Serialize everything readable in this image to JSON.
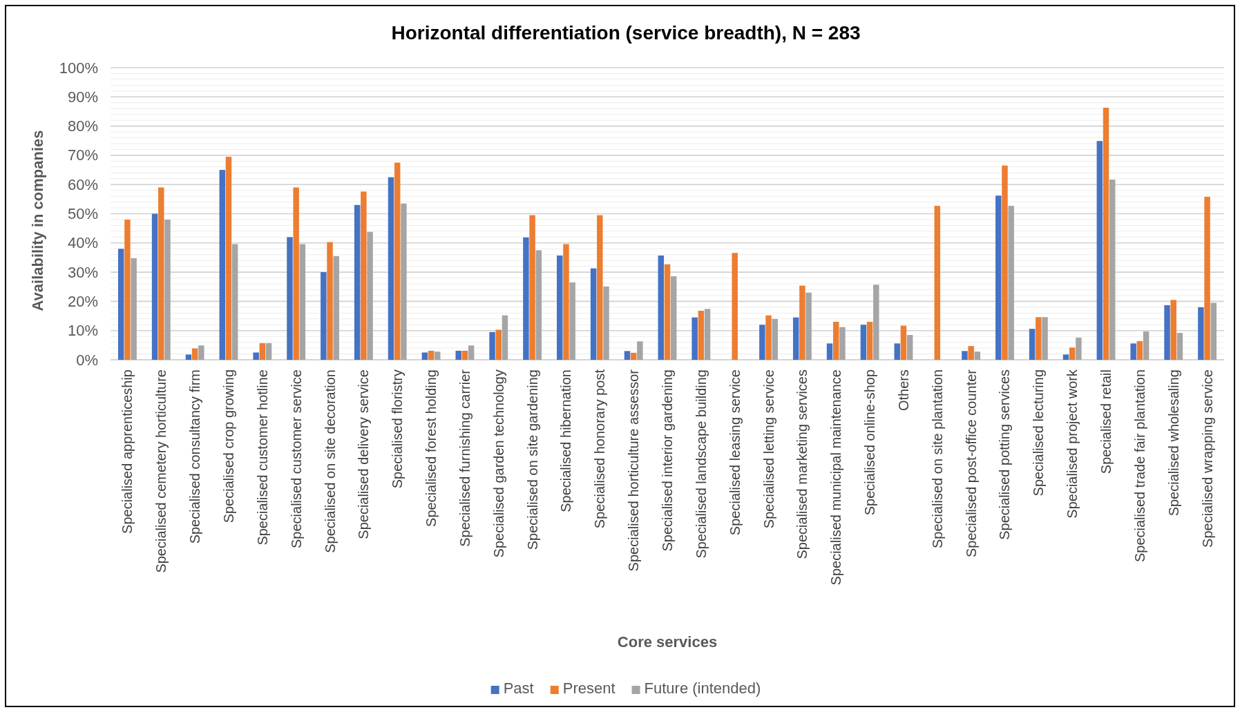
{
  "chart_data": {
    "type": "bar",
    "title": "Horizontal differentiation (service breadth), N = 283",
    "xlabel": "Core services",
    "ylabel": "Availability in companies",
    "categories": [
      "Specialised apprenticeship",
      "Specialised cemetery horticulture",
      "Specialised consultancy firm",
      "Specialised crop growing",
      "Specialised customer hotline",
      "Specialised  customer service",
      "Specialised on site decoration",
      "Specialised delivery service",
      "Specialised floristry",
      "Specialised forest holding",
      "Specialised furnishing carrier",
      "Specialised garden technology",
      "Specialised on site gardening",
      "Specialised hibernation",
      "Specialised honorary post",
      "Specialised horticulture assessor",
      "Specialised interior gardening",
      "Specialised landscape building",
      "Specialised leasing service",
      "Specialised letting service",
      "Specialised marketing services",
      "Specialised municipal maintenance",
      "Specialised online-shop",
      "Others",
      "Specialised on site plantation",
      "Specialised post-office counter",
      "Specialised potting services",
      "Specialised lecturing",
      "Specialised project work",
      "Specialised retail",
      "Specialised trade fair plantation",
      "Specialised wholesaling",
      "Specialised wrapping service"
    ],
    "series": [
      {
        "name": "Past",
        "color": "#4472c4",
        "values": [
          38,
          50,
          1.8,
          65,
          2.5,
          42,
          30,
          53,
          62.5,
          2.5,
          3.1,
          9.5,
          41.9,
          35.7,
          31.3,
          3,
          35.7,
          14.5,
          0,
          12,
          14.5,
          5.6,
          12,
          5.6,
          0,
          3,
          56.2,
          10.6,
          1.8,
          74.9,
          5.6,
          18.7,
          18
        ]
      },
      {
        "name": "Present",
        "color": "#ed7d31",
        "values": [
          48,
          59,
          3.9,
          69.5,
          5.7,
          59,
          40.3,
          57.6,
          67.5,
          3.1,
          3.1,
          10.3,
          49.5,
          39.6,
          49.5,
          2.4,
          32.7,
          16.8,
          36.6,
          15.2,
          25.4,
          13,
          13,
          11.7,
          52.7,
          4.7,
          66.5,
          14.6,
          4.2,
          86.3,
          6.4,
          20.5,
          55.8
        ]
      },
      {
        "name": "Future (intended)",
        "color": "#a5a5a5",
        "values": [
          34.8,
          48,
          4.9,
          39.6,
          5.7,
          39.6,
          35.5,
          43.8,
          53.5,
          2.8,
          4.9,
          15.2,
          37.5,
          26.5,
          25.1,
          6.3,
          28.6,
          17.4,
          0,
          14,
          23,
          11.2,
          25.7,
          8.5,
          0,
          2.8,
          52.7,
          14.6,
          7.6,
          61.7,
          9.7,
          9.2,
          19.5
        ]
      }
    ],
    "ylim": [
      0,
      100
    ],
    "yticks": [
      {
        "value": 0,
        "label": "0%"
      },
      {
        "value": 2,
        "label": null
      },
      {
        "value": 4,
        "label": null
      },
      {
        "value": 6,
        "label": null
      },
      {
        "value": 8,
        "label": null
      },
      {
        "value": 10,
        "label": "10%"
      },
      {
        "value": 12,
        "label": null
      },
      {
        "value": 14,
        "label": null
      },
      {
        "value": 16,
        "label": null
      },
      {
        "value": 18,
        "label": null
      },
      {
        "value": 20,
        "label": "20%"
      },
      {
        "value": 22,
        "label": null
      },
      {
        "value": 24,
        "label": null
      },
      {
        "value": 26,
        "label": null
      },
      {
        "value": 28,
        "label": null
      },
      {
        "value": 30,
        "label": "30%"
      },
      {
        "value": 32,
        "label": null
      },
      {
        "value": 34,
        "label": null
      },
      {
        "value": 36,
        "label": null
      },
      {
        "value": 38,
        "label": null
      },
      {
        "value": 40,
        "label": "40%"
      },
      {
        "value": 42,
        "label": null
      },
      {
        "value": 44,
        "label": null
      },
      {
        "value": 46,
        "label": null
      },
      {
        "value": 48,
        "label": null
      },
      {
        "value": 50,
        "label": "50%"
      },
      {
        "value": 52,
        "label": null
      },
      {
        "value": 54,
        "label": null
      },
      {
        "value": 56,
        "label": null
      },
      {
        "value": 58,
        "label": null
      },
      {
        "value": 60,
        "label": "60%"
      },
      {
        "value": 62,
        "label": null
      },
      {
        "value": 64,
        "label": null
      },
      {
        "value": 66,
        "label": null
      },
      {
        "value": 68,
        "label": null
      },
      {
        "value": 70,
        "label": "70%"
      },
      {
        "value": 72,
        "label": null
      },
      {
        "value": 74,
        "label": null
      },
      {
        "value": 76,
        "label": null
      },
      {
        "value": 78,
        "label": null
      },
      {
        "value": 80,
        "label": "80%"
      },
      {
        "value": 82,
        "label": null
      },
      {
        "value": 84,
        "label": null
      },
      {
        "value": 86,
        "label": null
      },
      {
        "value": 88,
        "label": null
      },
      {
        "value": 90,
        "label": "90%"
      },
      {
        "value": 92,
        "label": null
      },
      {
        "value": 94,
        "label": null
      },
      {
        "value": 96,
        "label": null
      },
      {
        "value": 98,
        "label": null
      },
      {
        "value": 100,
        "label": "100%"
      }
    ],
    "grid": "y",
    "legend": "bottom"
  }
}
